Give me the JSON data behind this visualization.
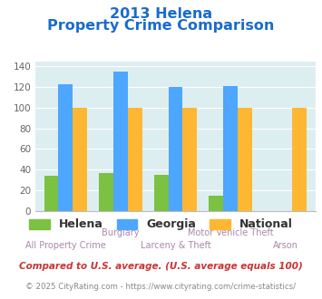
{
  "title_line1": "2013 Helena",
  "title_line2": "Property Crime Comparison",
  "categories": [
    "All Property Crime",
    "Burglary",
    "Larceny & Theft",
    "Motor Vehicle Theft",
    "Arson"
  ],
  "helena": [
    34,
    37,
    35,
    15,
    0
  ],
  "georgia": [
    123,
    135,
    120,
    121,
    0
  ],
  "national": [
    100,
    100,
    100,
    100,
    100
  ],
  "helena_color": "#7bc142",
  "georgia_color": "#4da6ff",
  "national_color": "#ffb733",
  "ylim": [
    0,
    145
  ],
  "yticks": [
    0,
    20,
    40,
    60,
    80,
    100,
    120,
    140
  ],
  "bg_color": "#ddeef0",
  "title_color": "#1a6bcc",
  "xtick_color": "#aa88aa",
  "legend_labels": [
    "Helena",
    "Georgia",
    "National"
  ],
  "footnote1": "Compared to U.S. average. (U.S. average equals 100)",
  "footnote2": "© 2025 CityRating.com - https://www.cityrating.com/crime-statistics/",
  "footnote1_color": "#cc3333",
  "footnote2_color": "#888888",
  "footnote2_link_color": "#3399cc"
}
